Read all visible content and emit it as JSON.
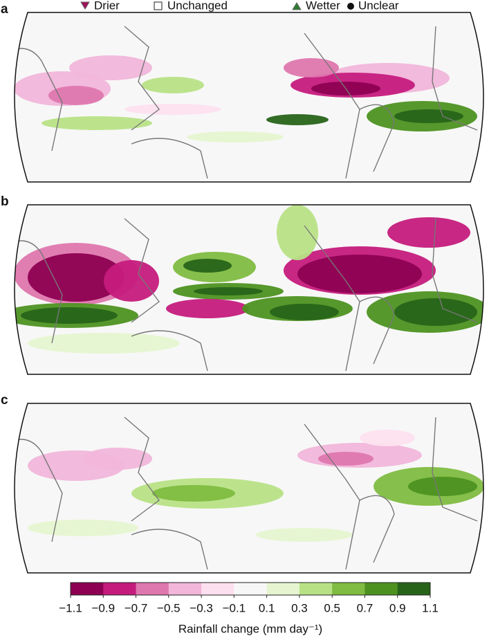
{
  "legend": [
    "Drier",
    "Unchanged",
    "Wetter",
    "Unclear"
  ],
  "panels": [
    "a",
    "b",
    "c"
  ],
  "chart_data": {
    "type": "colorbar",
    "xlim": [
      -1.1,
      1.1
    ],
    "xticks": [
      {
        "value": -1.1,
        "label": "−1.1"
      },
      {
        "value": -0.9,
        "label": "−0.9"
      },
      {
        "value": -0.7,
        "label": "−0.7"
      },
      {
        "value": -0.5,
        "label": "−0.5"
      },
      {
        "value": -0.3,
        "label": "−0.3"
      },
      {
        "value": -0.1,
        "label": "−0.1"
      },
      0.1,
      0.3,
      0.5,
      0.7,
      0.9,
      1.1
    ],
    "colors": [
      "#8e0152",
      "#c51b7d",
      "#de77ae",
      "#f1b6da",
      "#fde0ef",
      "#f7f7f7",
      "#e6f5d0",
      "#b8e186",
      "#7fbc41",
      "#4d9221",
      "#276419"
    ],
    "xlabel": "Rainfall change (mm day⁻¹)"
  }
}
